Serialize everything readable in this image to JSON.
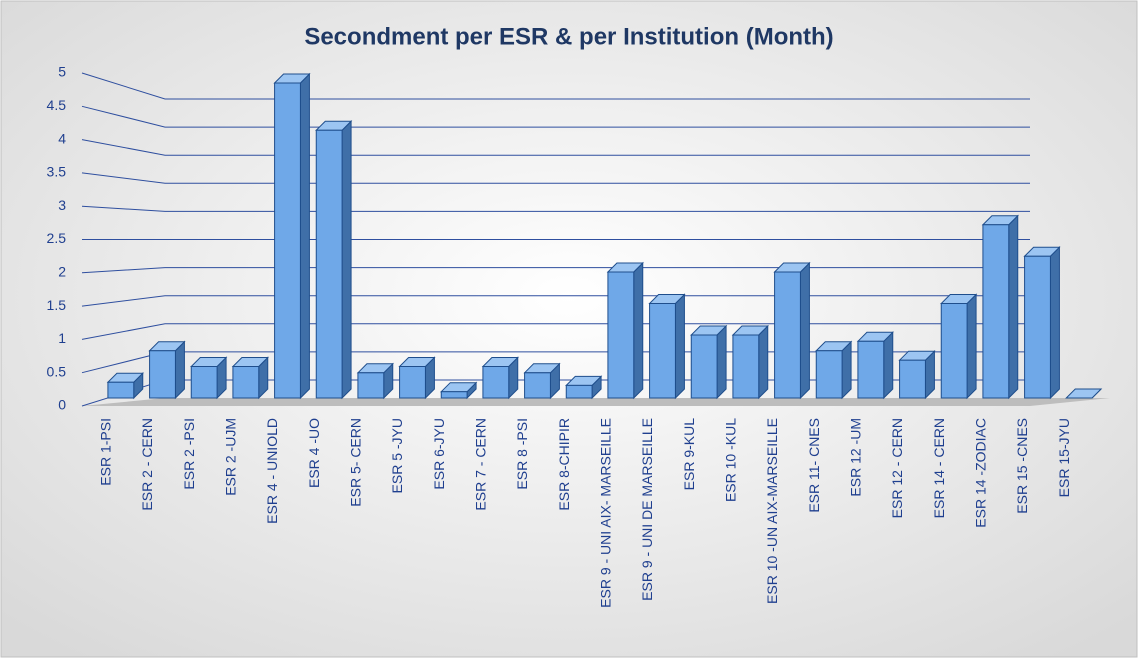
{
  "chart_data": {
    "type": "bar3d",
    "title": "Secondment per ESR & per Institution (Month)",
    "categories": [
      "ESR 1-PSI",
      "ESR 2 - CERN",
      "ESR 2 -PSI",
      "ESR 2 -UJM",
      "ESR 4 - UNIOLD",
      "ESR 4 -UO",
      "ESR 5- CERN",
      "ESR 5 -JYU",
      "ESR 6-JYU",
      "ESR 7 - CERN",
      "ESR 8 -PSI",
      "ESR 8-CHIPIR",
      "ESR 9 - UNI AIX- MARSEILLE",
      "ESR 9 - UNI DE MARSEILLE",
      "ESR 9-KUL",
      "ESR 10 -KUL",
      "ESR 10 -UN AIX-MARSEILLE",
      "ESR 11- CNES",
      "ESR 12  -UM",
      "ESR 12 - CERN",
      "ESR 14 - CERN",
      "ESR 14 -ZODIAC",
      "ESR 15 -CNES",
      "ESR 15-JYU"
    ],
    "values": [
      0.25,
      0.75,
      0.5,
      0.5,
      5,
      4.25,
      0.4,
      0.5,
      0.1,
      0.5,
      0.4,
      0.2,
      2,
      1.5,
      1,
      1,
      2,
      0.75,
      0.9,
      0.6,
      1.5,
      2.75,
      2.25,
      0
    ],
    "color": "#6fa8e8",
    "ylim": [
      0,
      5
    ],
    "yticks": [
      0,
      0.5,
      1,
      1.5,
      2,
      2.5,
      3,
      3.5,
      4,
      4.5,
      5
    ],
    "grid": true
  }
}
